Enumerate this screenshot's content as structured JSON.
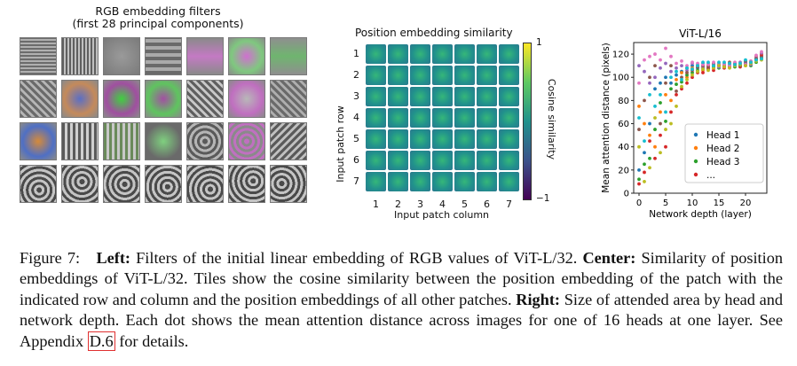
{
  "left": {
    "title_line1": "RGB embedding filters",
    "title_line2": "(first 28 principal components)"
  },
  "center": {
    "title": "Position embedding similarity",
    "xlabel": "Input patch column",
    "ylabel": "Input patch row",
    "row_ticks": [
      "1",
      "2",
      "3",
      "4",
      "5",
      "6",
      "7"
    ],
    "col_ticks": [
      "1",
      "2",
      "3",
      "4",
      "5",
      "6",
      "7"
    ],
    "colorbar_label": "Cosine similarity",
    "colorbar_ticks": [
      "1",
      "−1"
    ]
  },
  "chart_data": {
    "type": "scatter",
    "title": "ViT-L/16",
    "xlabel": "Network depth (layer)",
    "ylabel": "Mean attention distance (pixels)",
    "xlim": [
      -1,
      24
    ],
    "ylim": [
      0,
      130
    ],
    "xticks": [
      0,
      5,
      10,
      15,
      20
    ],
    "yticks": [
      0,
      20,
      40,
      60,
      80,
      100,
      120
    ],
    "legend_position": "lower-right",
    "legend": [
      "Head 1",
      "Head 2",
      "Head 3",
      "..."
    ],
    "series": [
      {
        "name": "Head 1",
        "color": "#1f77b4",
        "points": [
          [
            0,
            20
          ],
          [
            1,
            35
          ],
          [
            2,
            60
          ],
          [
            3,
            90
          ],
          [
            4,
            95
          ],
          [
            5,
            100
          ],
          [
            6,
            95
          ],
          [
            7,
            102
          ],
          [
            8,
            105
          ],
          [
            9,
            108
          ],
          [
            10,
            110
          ],
          [
            11,
            108
          ],
          [
            12,
            112
          ],
          [
            13,
            110
          ],
          [
            14,
            110
          ],
          [
            15,
            112
          ],
          [
            16,
            110
          ],
          [
            17,
            110
          ],
          [
            18,
            112
          ],
          [
            19,
            111
          ],
          [
            20,
            113
          ],
          [
            21,
            112
          ],
          [
            22,
            115
          ],
          [
            23,
            118
          ]
        ]
      },
      {
        "name": "Head 2",
        "color": "#ff7f0e",
        "points": [
          [
            0,
            75
          ],
          [
            1,
            60
          ],
          [
            2,
            50
          ],
          [
            3,
            40
          ],
          [
            4,
            70
          ],
          [
            5,
            85
          ],
          [
            6,
            80
          ],
          [
            7,
            98
          ],
          [
            8,
            104
          ],
          [
            9,
            100
          ],
          [
            10,
            108
          ],
          [
            11,
            110
          ],
          [
            12,
            106
          ],
          [
            13,
            110
          ],
          [
            14,
            108
          ],
          [
            15,
            110
          ],
          [
            16,
            109
          ],
          [
            17,
            112
          ],
          [
            18,
            110
          ],
          [
            19,
            112
          ],
          [
            20,
            110
          ],
          [
            21,
            114
          ],
          [
            22,
            118
          ],
          [
            23,
            120
          ]
        ]
      },
      {
        "name": "Head 3",
        "color": "#2ca02c",
        "points": [
          [
            0,
            12
          ],
          [
            1,
            25
          ],
          [
            2,
            30
          ],
          [
            3,
            55
          ],
          [
            4,
            78
          ],
          [
            5,
            62
          ],
          [
            6,
            90
          ],
          [
            7,
            94
          ],
          [
            8,
            96
          ],
          [
            9,
            102
          ],
          [
            10,
            104
          ],
          [
            11,
            106
          ],
          [
            12,
            108
          ],
          [
            13,
            107
          ],
          [
            14,
            109
          ],
          [
            15,
            108
          ],
          [
            16,
            111
          ],
          [
            17,
            110
          ],
          [
            18,
            109
          ],
          [
            19,
            110
          ],
          [
            20,
            112
          ],
          [
            21,
            110
          ],
          [
            22,
            113
          ],
          [
            23,
            116
          ]
        ]
      },
      {
        "name": "...",
        "color": "#d62728",
        "points": [
          [
            0,
            8
          ],
          [
            1,
            18
          ],
          [
            2,
            45
          ],
          [
            3,
            30
          ],
          [
            4,
            50
          ],
          [
            5,
            40
          ],
          [
            6,
            70
          ],
          [
            7,
            85
          ],
          [
            8,
            90
          ],
          [
            9,
            95
          ],
          [
            10,
            100
          ],
          [
            11,
            104
          ],
          [
            12,
            104
          ],
          [
            13,
            108
          ],
          [
            14,
            106
          ],
          [
            15,
            110
          ],
          [
            16,
            108
          ],
          [
            17,
            109
          ],
          [
            18,
            111
          ],
          [
            19,
            109
          ],
          [
            20,
            111
          ],
          [
            21,
            113
          ],
          [
            22,
            116
          ],
          [
            23,
            119
          ]
        ]
      },
      {
        "name": "",
        "color": "#9467bd",
        "points": [
          [
            0,
            110
          ],
          [
            1,
            105
          ],
          [
            2,
            95
          ],
          [
            3,
            100
          ],
          [
            4,
            108
          ],
          [
            5,
            112
          ],
          [
            6,
            105
          ],
          [
            7,
            108
          ],
          [
            8,
            110
          ],
          [
            9,
            106
          ],
          [
            10,
            112
          ],
          [
            11,
            111
          ],
          [
            12,
            109
          ],
          [
            13,
            112
          ],
          [
            14,
            111
          ],
          [
            15,
            109
          ],
          [
            16,
            112
          ],
          [
            17,
            111
          ],
          [
            18,
            110
          ],
          [
            19,
            113
          ],
          [
            20,
            112
          ],
          [
            21,
            111
          ],
          [
            22,
            117
          ],
          [
            23,
            121
          ]
        ]
      },
      {
        "name": "",
        "color": "#8c564b",
        "points": [
          [
            0,
            55
          ],
          [
            1,
            80
          ],
          [
            2,
            100
          ],
          [
            3,
            110
          ],
          [
            4,
            60
          ],
          [
            5,
            95
          ],
          [
            6,
            110
          ],
          [
            7,
            88
          ],
          [
            8,
            100
          ],
          [
            9,
            104
          ],
          [
            10,
            106
          ],
          [
            11,
            109
          ],
          [
            12,
            110
          ],
          [
            13,
            109
          ],
          [
            14,
            112
          ],
          [
            15,
            111
          ],
          [
            16,
            110
          ],
          [
            17,
            113
          ],
          [
            18,
            112
          ],
          [
            19,
            110
          ],
          [
            20,
            114
          ],
          [
            21,
            112
          ],
          [
            22,
            116
          ],
          [
            23,
            117
          ]
        ]
      },
      {
        "name": "",
        "color": "#e377c2",
        "points": [
          [
            0,
            95
          ],
          [
            1,
            115
          ],
          [
            2,
            118
          ],
          [
            3,
            120
          ],
          [
            4,
            115
          ],
          [
            5,
            125
          ],
          [
            6,
            118
          ],
          [
            7,
            112
          ],
          [
            8,
            114
          ],
          [
            9,
            110
          ],
          [
            10,
            113
          ],
          [
            11,
            112
          ],
          [
            12,
            111
          ],
          [
            13,
            111
          ],
          [
            14,
            113
          ],
          [
            15,
            112
          ],
          [
            16,
            111
          ],
          [
            17,
            110
          ],
          [
            18,
            113
          ],
          [
            19,
            112
          ],
          [
            20,
            111
          ],
          [
            21,
            114
          ],
          [
            22,
            119
          ],
          [
            23,
            122
          ]
        ]
      },
      {
        "name": "",
        "color": "#bcbd22",
        "points": [
          [
            0,
            40
          ],
          [
            1,
            10
          ],
          [
            2,
            22
          ],
          [
            3,
            65
          ],
          [
            4,
            35
          ],
          [
            5,
            55
          ],
          [
            6,
            60
          ],
          [
            7,
            75
          ],
          [
            8,
            92
          ],
          [
            9,
            98
          ],
          [
            10,
            102
          ],
          [
            11,
            105
          ],
          [
            12,
            107
          ],
          [
            13,
            106
          ],
          [
            14,
            108
          ],
          [
            15,
            110
          ],
          [
            16,
            109
          ],
          [
            17,
            108
          ],
          [
            18,
            110
          ],
          [
            19,
            111
          ],
          [
            20,
            110
          ],
          [
            21,
            112
          ],
          [
            22,
            114
          ],
          [
            23,
            115
          ]
        ]
      },
      {
        "name": "",
        "color": "#17becf",
        "points": [
          [
            0,
            65
          ],
          [
            1,
            45
          ],
          [
            2,
            85
          ],
          [
            3,
            75
          ],
          [
            4,
            85
          ],
          [
            5,
            70
          ],
          [
            6,
            100
          ],
          [
            7,
            105
          ],
          [
            8,
            98
          ],
          [
            9,
            108
          ],
          [
            10,
            107
          ],
          [
            11,
            110
          ],
          [
            12,
            113
          ],
          [
            13,
            113
          ],
          [
            14,
            110
          ],
          [
            15,
            113
          ],
          [
            16,
            113
          ],
          [
            17,
            112
          ],
          [
            18,
            111
          ],
          [
            19,
            112
          ],
          [
            20,
            115
          ],
          [
            21,
            113
          ],
          [
            22,
            115
          ],
          [
            23,
            116
          ]
        ]
      }
    ]
  },
  "caption": {
    "fig_label": "Figure 7:",
    "left_bold": "Left:",
    "left_text": "Filters of the initial linear embedding of RGB values of ViT-L/32.",
    "center_bold": "Center:",
    "center_text": "Similarity of position embeddings of ViT-L/32. Tiles show the cosine similarity between the position embedding of the patch with the indicated row and column and the position embeddings of all other patches.",
    "right_bold": "Right:",
    "right_text": "Size of attended area by head and network depth. Each dot shows the mean attention distance across images for one of 16 heads at one layer. See Appendix",
    "appendix_ref": "D.6",
    "tail": "for details."
  }
}
